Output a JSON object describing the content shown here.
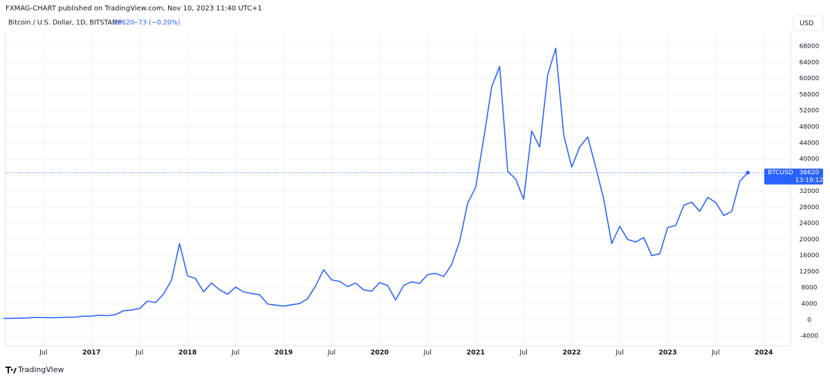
{
  "chart_data": {
    "type": "line",
    "published": "FXMAG-CHART published on TradingView.com, Nov 10, 2023 11:40 UTC+1",
    "title": "Bitcoin / U.S. Dollar, 1D, BITSTAMP",
    "change": "−73 (−0.20%)",
    "currency": "USD",
    "symbol": "BTCUSD",
    "countdown": "13:19:12",
    "brand": "TradingView",
    "color": "#2962ff",
    "grid": true,
    "x": [
      "2016-02",
      "2016-03",
      "2016-04",
      "2016-05",
      "2016-06",
      "2016-07",
      "2016-08",
      "2016-09",
      "2016-10",
      "2016-11",
      "2016-12",
      "2017-01",
      "2017-02",
      "2017-03",
      "2017-04",
      "2017-05",
      "2017-06",
      "2017-07",
      "2017-08",
      "2017-09",
      "2017-10",
      "2017-11",
      "2017-12",
      "2018-01",
      "2018-02",
      "2018-03",
      "2018-04",
      "2018-05",
      "2018-06",
      "2018-07",
      "2018-08",
      "2018-09",
      "2018-10",
      "2018-11",
      "2018-12",
      "2019-01",
      "2019-02",
      "2019-03",
      "2019-04",
      "2019-05",
      "2019-06",
      "2019-07",
      "2019-08",
      "2019-09",
      "2019-10",
      "2019-11",
      "2019-12",
      "2020-01",
      "2020-02",
      "2020-03",
      "2020-04",
      "2020-05",
      "2020-06",
      "2020-07",
      "2020-08",
      "2020-09",
      "2020-10",
      "2020-11",
      "2020-12",
      "2021-01",
      "2021-02",
      "2021-03",
      "2021-04",
      "2021-05",
      "2021-06",
      "2021-07",
      "2021-08",
      "2021-09",
      "2021-10",
      "2021-11",
      "2021-12",
      "2022-01",
      "2022-02",
      "2022-03",
      "2022-04",
      "2022-05",
      "2022-06",
      "2022-07",
      "2022-08",
      "2022-09",
      "2022-10",
      "2022-11",
      "2022-12",
      "2023-01",
      "2023-02",
      "2023-03",
      "2023-04",
      "2023-05",
      "2023-06",
      "2023-07",
      "2023-08",
      "2023-09",
      "2023-10",
      "2023-11"
    ],
    "values": [
      400,
      415,
      450,
      530,
      670,
      620,
      575,
      610,
      700,
      740,
      960,
      970,
      1190,
      1080,
      1350,
      2300,
      2500,
      2870,
      4700,
      4340,
      6450,
      9950,
      19000,
      11000,
      10300,
      7000,
      9200,
      7500,
      6400,
      8200,
      7000,
      6600,
      6300,
      4000,
      3700,
      3450,
      3800,
      4100,
      5300,
      8500,
      12500,
      10000,
      9600,
      8300,
      9200,
      7500,
      7200,
      9300,
      8600,
      5000,
      8600,
      9500,
      9100,
      11300,
      11600,
      10800,
      13800,
      19600,
      29000,
      33000,
      45000,
      58000,
      63000,
      37000,
      35000,
      30000,
      47000,
      43000,
      61000,
      67500,
      46000,
      38000,
      43000,
      45500,
      38000,
      30000,
      19000,
      23300,
      20000,
      19400,
      20500,
      16000,
      16500,
      23000,
      23500,
      28500,
      29300,
      27000,
      30500,
      29200,
      26000,
      27000,
      34500,
      36620
    ],
    "xlim": [
      "2016-02",
      "2024-04"
    ],
    "xticks": [
      {
        "value": "2016-07",
        "label": "Jul"
      },
      {
        "value": "2017-01",
        "label": "2017"
      },
      {
        "value": "2017-07",
        "label": "Jul"
      },
      {
        "value": "2018-01",
        "label": "2018"
      },
      {
        "value": "2018-07",
        "label": "Jul"
      },
      {
        "value": "2019-01",
        "label": "2019"
      },
      {
        "value": "2019-07",
        "label": "Jul"
      },
      {
        "value": "2020-01",
        "label": "2020"
      },
      {
        "value": "2020-07",
        "label": "Jul"
      },
      {
        "value": "2021-01",
        "label": "2021"
      },
      {
        "value": "2021-07",
        "label": "Jul"
      },
      {
        "value": "2022-01",
        "label": "2022"
      },
      {
        "value": "2022-07",
        "label": "Jul"
      },
      {
        "value": "2023-01",
        "label": "2023"
      },
      {
        "value": "2023-07",
        "label": "Jul"
      },
      {
        "value": "2024-01",
        "label": "2024"
      }
    ],
    "ylim": [
      -6400,
      71800
    ],
    "yticks": [
      -4000,
      0,
      4000,
      8000,
      12000,
      16000,
      20000,
      24000,
      28000,
      32000,
      36000,
      40000,
      44000,
      48000,
      52000,
      56000,
      60000,
      64000,
      68000
    ]
  }
}
